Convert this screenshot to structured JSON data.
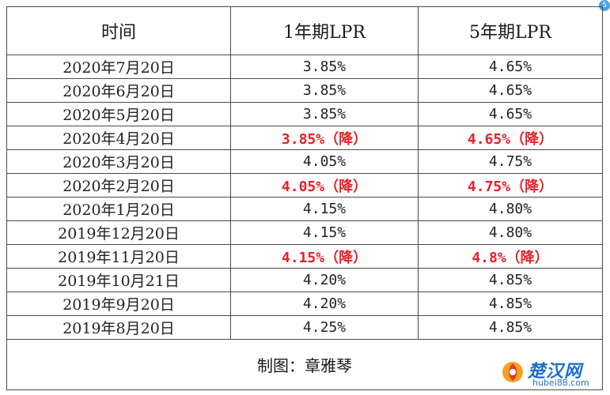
{
  "table": {
    "headers": [
      "时间",
      "1年期LPR",
      "5年期LPR"
    ],
    "rows": [
      {
        "date": "2020年7月20日",
        "lpr1": "3.85%",
        "lpr5": "4.65%",
        "cut1": false,
        "cut5": false
      },
      {
        "date": "2020年6月20日",
        "lpr1": "3.85%",
        "lpr5": "4.65%",
        "cut1": false,
        "cut5": false
      },
      {
        "date": "2020年5月20日",
        "lpr1": "3.85%",
        "lpr5": "4.65%",
        "cut1": false,
        "cut5": false
      },
      {
        "date": "2020年4月20日",
        "lpr1": "3.85%（降）",
        "lpr5": "4.65%（降）",
        "cut1": true,
        "cut5": true
      },
      {
        "date": "2020年3月20日",
        "lpr1": "4.05%",
        "lpr5": "4.75%",
        "cut1": false,
        "cut5": false
      },
      {
        "date": "2020年2月20日",
        "lpr1": "4.05%（降）",
        "lpr5": "4.75%（降）",
        "cut1": true,
        "cut5": true
      },
      {
        "date": "2020年1月20日",
        "lpr1": "4.15%",
        "lpr5": "4.80%",
        "cut1": false,
        "cut5": false
      },
      {
        "date": "2019年12月20日",
        "lpr1": "4.15%",
        "lpr5": "4.80%",
        "cut1": false,
        "cut5": false
      },
      {
        "date": "2019年11月20日",
        "lpr1": "4.15%（降）",
        "lpr5": "4.8%（降）",
        "cut1": true,
        "cut5": true
      },
      {
        "date": "2019年10月21日",
        "lpr1": "4.20%",
        "lpr5": "4.85%",
        "cut1": false,
        "cut5": false
      },
      {
        "date": "2019年9月20日",
        "lpr1": "4.20%",
        "lpr5": "4.85%",
        "cut1": false,
        "cut5": false
      },
      {
        "date": "2019年8月20日",
        "lpr1": "4.25%",
        "lpr5": "4.85%",
        "cut1": false,
        "cut5": false
      }
    ],
    "footer": "制图：章雅琴"
  },
  "colors": {
    "cut_highlight": "#e8202a",
    "border": "#4a4a4a",
    "watermark_blue": "#1d6fd1"
  },
  "corner_badge": "5",
  "watermark": {
    "title": "楚汉网",
    "url": "hubei88.com"
  }
}
